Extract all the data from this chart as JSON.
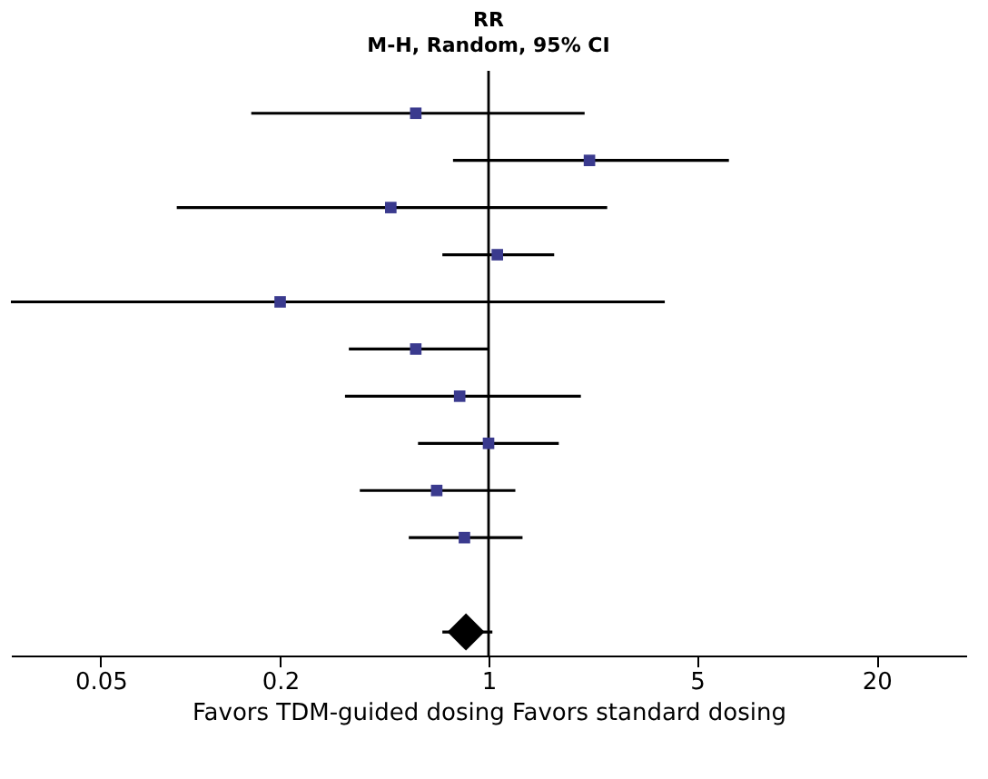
{
  "chart_data": {
    "type": "scatter",
    "orientation": "horizontal",
    "title": "RR",
    "subtitle": "M-H, Random, 95% CI",
    "xlabel": "Favors TDM-guided dosing   Favors standard dosing",
    "categories": [
      null,
      null,
      null,
      null,
      null,
      null,
      null,
      null,
      null,
      null,
      null,
      null
    ],
    "series": [
      {
        "marker": "square",
        "color": "#3a3a8e",
        "values": [
          0.57,
          2.18,
          0.47,
          1.07,
          0.2,
          0.57,
          0.8,
          1.0,
          0.67,
          0.83,
          null,
          null
        ],
        "errors": [
          [
            0.16,
            2.1
          ],
          [
            0.76,
            6.4
          ],
          [
            0.09,
            2.5
          ],
          [
            0.7,
            1.66
          ],
          [
            0.025,
            3.9
          ],
          [
            0.34,
            1.0
          ],
          [
            0.33,
            2.04
          ],
          [
            0.58,
            1.72
          ],
          [
            0.37,
            1.23
          ],
          [
            0.54,
            1.3
          ],
          null,
          null
        ]
      },
      {
        "marker": "diamond",
        "color": "#000000",
        "values": [
          null,
          null,
          null,
          null,
          null,
          null,
          null,
          null,
          null,
          null,
          null,
          0.84
        ],
        "errors": [
          null,
          null,
          null,
          null,
          null,
          null,
          null,
          null,
          null,
          null,
          null,
          [
            0.7,
            1.03
          ]
        ]
      }
    ],
    "log": "x",
    "xlim": [
      0.025,
      40
    ],
    "xticks": [
      0.05,
      0.2,
      1,
      5,
      20
    ],
    "ref_lines": [
      {
        "axis": "x",
        "value": 1,
        "color": "#000000"
      }
    ],
    "tick_labels": "x",
    "grid": false
  }
}
